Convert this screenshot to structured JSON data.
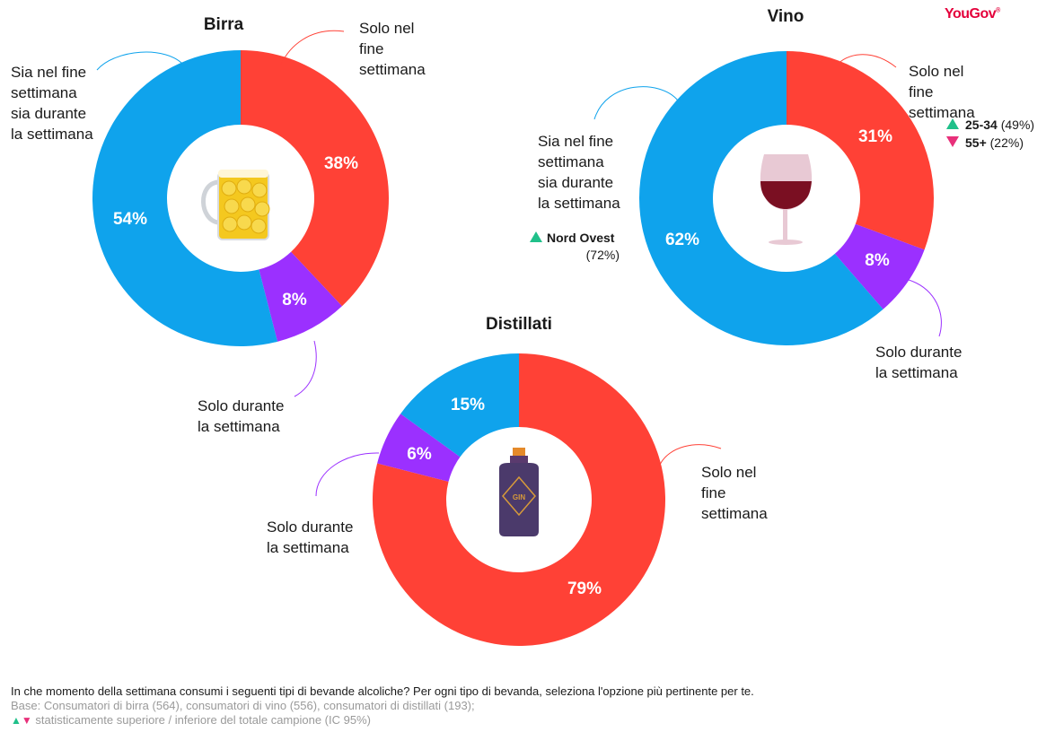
{
  "brand": {
    "name": "YouGov",
    "color": "#e4003b"
  },
  "colors": {
    "weekend": "#ff4136",
    "weekday": "#9b30ff",
    "both": "#0fa3ec",
    "up": "#20c08a",
    "down": "#e8307a"
  },
  "chart_data": [
    {
      "type": "pie",
      "title": "Birra",
      "icon": "beer-mug-icon",
      "slices": [
        {
          "key": "weekend",
          "label": "Solo nel fine settimana",
          "value": 38,
          "display": "38%"
        },
        {
          "key": "weekday",
          "label": "Solo durante la settimana",
          "value": 8,
          "display": "8%"
        },
        {
          "key": "both",
          "label": "Sia nel fine settimana sia durante la settimana",
          "value": 54,
          "display": "54%"
        }
      ]
    },
    {
      "type": "pie",
      "title": "Vino",
      "icon": "wine-glass-icon",
      "slices": [
        {
          "key": "weekend",
          "label": "Solo nel fine settimana",
          "value": 31,
          "display": "31%"
        },
        {
          "key": "weekday",
          "label": "Solo durante la settimana",
          "value": 8,
          "display": "8%"
        },
        {
          "key": "both",
          "label": "Sia nel fine settimana sia durante la settimana",
          "value": 62,
          "display": "62%"
        }
      ],
      "annotations": [
        {
          "direction": "up",
          "group": "25-34",
          "value": "(49%)"
        },
        {
          "direction": "down",
          "group": "55+",
          "value": "(22%)"
        },
        {
          "direction": "up",
          "group": "Nord Ovest",
          "value": "(72%)"
        }
      ]
    },
    {
      "type": "pie",
      "title": "Distillati",
      "icon": "gin-bottle-icon",
      "bottle_label": "GIN",
      "slices": [
        {
          "key": "weekend",
          "label": "Solo nel fine settimana",
          "value": 79,
          "display": "79%"
        },
        {
          "key": "weekday",
          "label": "Solo durante la settimana",
          "value": 6,
          "display": "6%"
        },
        {
          "key": "both",
          "label": "Sia nel fine settimana sia durante la settimana",
          "value": 15,
          "display": "15%"
        }
      ]
    }
  ],
  "footer": {
    "question": "In che momento della settimana consumi i seguenti tipi di bevande alcoliche? Per ogni tipo di bevanda, seleziona l'opzione più pertinente per te.",
    "base": "Base: Consumatori di birra (564), consumatori di vino (556), consumatori di distillati (193);",
    "significance": "statisticamente superiore / inferiore del totale campione (IC 95%)"
  }
}
